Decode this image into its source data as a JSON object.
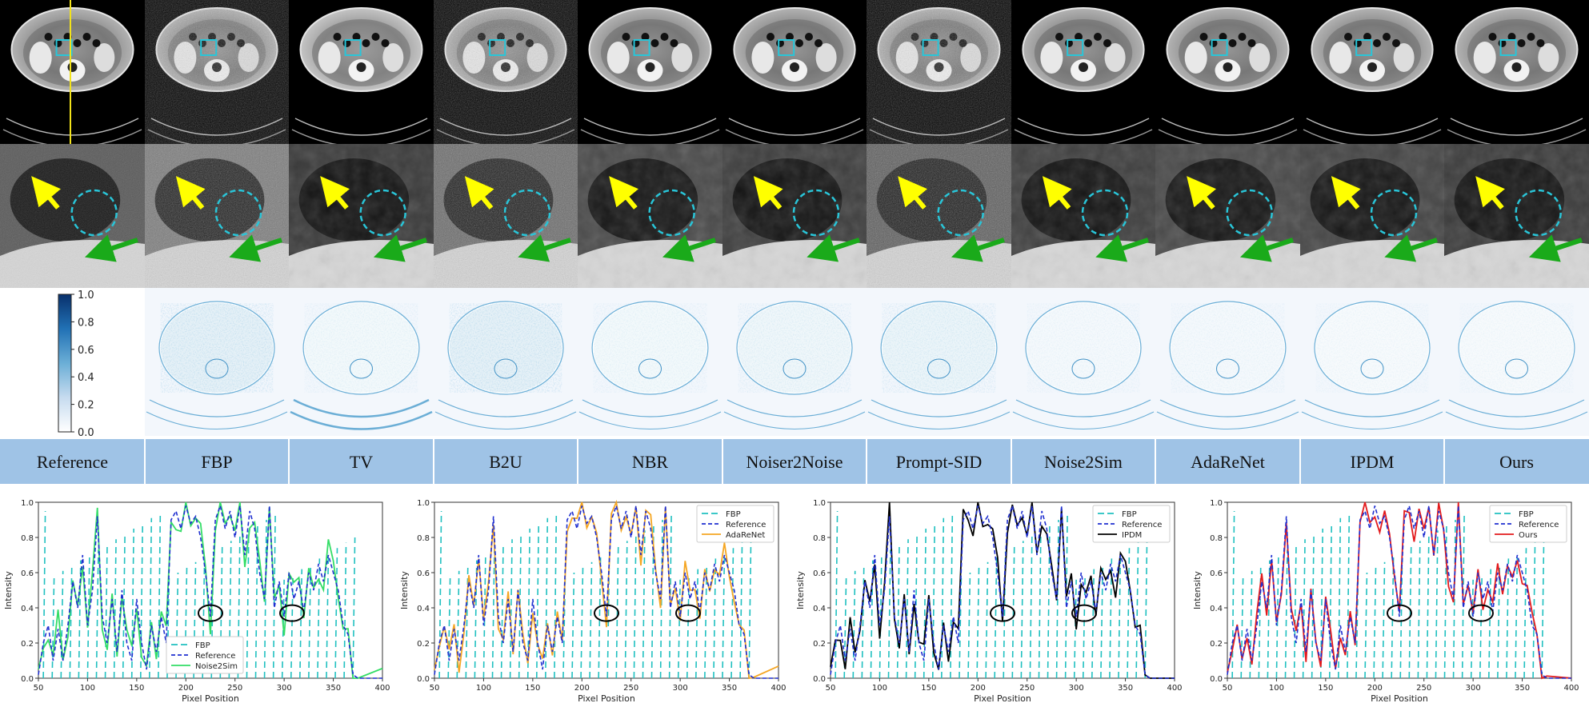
{
  "methods": [
    "Reference",
    "FBP",
    "TV",
    "B2U",
    "NBR",
    "Noiser2Noise",
    "Prompt-SID",
    "Noise2Sim",
    "AdaReNet",
    "IPDM",
    "Ours"
  ],
  "colorbar": {
    "ticks": [
      "1.0",
      "0.8",
      "0.6",
      "0.4",
      "0.2",
      "0.0"
    ],
    "color_low": "#ffffff",
    "color_high": "#08306b"
  },
  "colors": {
    "label_band": "#9fc3e6",
    "fbp": "#20c0c0",
    "reference": "#1f2fd0",
    "noise2sim": "#33dd66",
    "adarenet": "#f5a623",
    "ipdm": "#000000",
    "ours": "#e31a1c",
    "roi_box": "#29c5d8",
    "yellow_arrow": "#ffff00",
    "green_arrow": "#1aaa1a"
  },
  "chart_data": [
    {
      "type": "line",
      "xlabel": "Pixel Position",
      "ylabel": "Intensity",
      "xlim": [
        50,
        400
      ],
      "ylim": [
        0.0,
        1.0
      ],
      "xticks": [
        "50",
        "100",
        "150",
        "200",
        "250",
        "300",
        "350",
        "400"
      ],
      "yticks": [
        "0.0",
        "0.2",
        "0.4",
        "0.6",
        "0.8",
        "1.0"
      ],
      "legend": [
        "FBP",
        "Reference",
        "Noise2Sim"
      ],
      "legend_position": "bottom-left",
      "compare_color": "#33dd66"
    },
    {
      "type": "line",
      "xlabel": "Pixel Position",
      "ylabel": "Intensity",
      "xlim": [
        50,
        400
      ],
      "ylim": [
        0.0,
        1.0
      ],
      "xticks": [
        "50",
        "100",
        "150",
        "200",
        "250",
        "300",
        "350",
        "400"
      ],
      "yticks": [
        "0.0",
        "0.2",
        "0.4",
        "0.6",
        "0.8",
        "1.0"
      ],
      "legend": [
        "FBP",
        "Reference",
        "AdaReNet"
      ],
      "legend_position": "top-right",
      "compare_color": "#f5a623"
    },
    {
      "type": "line",
      "xlabel": "Pixel Position",
      "ylabel": "Intensity",
      "xlim": [
        50,
        400
      ],
      "ylim": [
        0.0,
        1.0
      ],
      "xticks": [
        "50",
        "100",
        "150",
        "200",
        "250",
        "300",
        "350",
        "400"
      ],
      "yticks": [
        "0.0",
        "0.2",
        "0.4",
        "0.6",
        "0.8",
        "1.0"
      ],
      "legend": [
        "FBP",
        "Reference",
        "IPDM"
      ],
      "legend_position": "top-right",
      "compare_color": "#000000"
    },
    {
      "type": "line",
      "xlabel": "Pixel Position",
      "ylabel": "Intensity",
      "xlim": [
        50,
        400
      ],
      "ylim": [
        0.0,
        1.0
      ],
      "xticks": [
        "50",
        "100",
        "150",
        "200",
        "250",
        "300",
        "350",
        "400"
      ],
      "yticks": [
        "0.0",
        "0.2",
        "0.4",
        "0.6",
        "0.8",
        "1.0"
      ],
      "legend": [
        "FBP",
        "Reference",
        "Ours"
      ],
      "legend_position": "top-right",
      "compare_color": "#e31a1c"
    }
  ]
}
